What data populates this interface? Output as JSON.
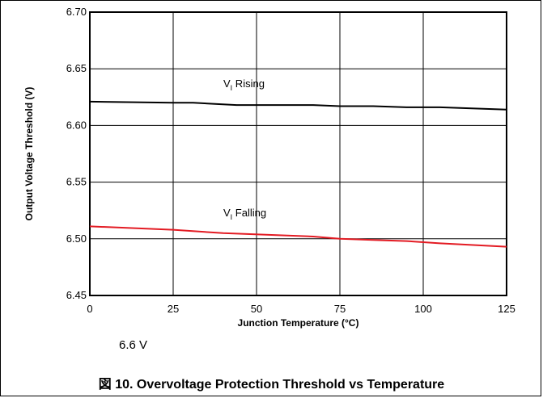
{
  "chart_data": {
    "type": "line",
    "xlabel": "Junction Temperature (°C)",
    "ylabel": "Output Voltage Threshold (V)",
    "xlim": [
      0,
      125
    ],
    "ylim": [
      6.45,
      6.7
    ],
    "xticks": [
      0,
      25,
      50,
      75,
      100,
      125
    ],
    "yticks": [
      6.45,
      6.5,
      6.55,
      6.6,
      6.65,
      6.7
    ],
    "ytick_labels": [
      "6.45",
      "6.50",
      "6.55",
      "6.60",
      "6.65",
      "6.70"
    ],
    "grid": true,
    "legend": "none",
    "series": [
      {
        "label_main": "V",
        "label_sub": "I",
        "label_suffix": " Rising",
        "color": "#000000",
        "x": [
          0,
          25,
          31,
          44,
          67,
          75,
          85,
          95,
          105,
          125
        ],
        "y": [
          6.621,
          6.62,
          6.62,
          6.618,
          6.618,
          6.617,
          6.617,
          6.616,
          6.616,
          6.614
        ]
      },
      {
        "label_main": "V",
        "label_sub": "I",
        "label_suffix": " Falling",
        "color": "#e31b23",
        "x": [
          0,
          25,
          40,
          67,
          75,
          85,
          95,
          105,
          125
        ],
        "y": [
          6.511,
          6.508,
          6.505,
          6.502,
          6.5,
          6.499,
          6.498,
          6.496,
          6.493
        ]
      }
    ]
  },
  "note": "6.6 V",
  "caption": "図 10. Overvoltage Protection Threshold vs Temperature"
}
